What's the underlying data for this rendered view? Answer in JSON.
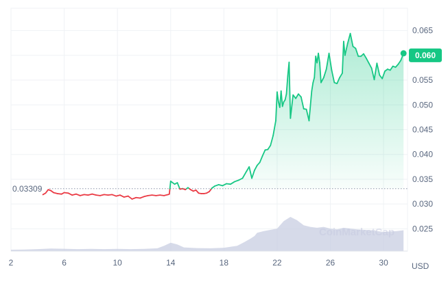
{
  "chart_data": {
    "type": "line",
    "currency": "USD",
    "watermark": "CoinMarketCap",
    "reference": {
      "value": 0.03309,
      "label": "0.03309"
    },
    "current": {
      "value": 0.06,
      "label": "0.060"
    },
    "ylim": [
      0.0205,
      0.0695
    ],
    "xlim": [
      2,
      31.8
    ],
    "x_ticks": [
      2,
      6,
      10,
      14,
      18,
      22,
      26,
      30
    ],
    "x_tick_labels": [
      "2",
      "6",
      "10",
      "14",
      "18",
      "22",
      "26",
      "30"
    ],
    "y_ticks": [
      0.025,
      0.03,
      0.035,
      0.04,
      0.045,
      0.05,
      0.055,
      0.06,
      0.065
    ],
    "y_tick_labels": [
      "0.025",
      "0.030",
      "0.035",
      "0.040",
      "0.045",
      "0.050",
      "0.055",
      "0.060",
      "0.065"
    ],
    "grid": true,
    "colors": {
      "up": "#16c784",
      "down": "#ea3943",
      "volume": "#c8cee2",
      "badge": "#16c784"
    },
    "series": [
      {
        "x": [
          4.4,
          4.6,
          4.8,
          5.0,
          5.2,
          5.5,
          5.8,
          6.0,
          6.3,
          6.6,
          6.9,
          7.2,
          7.5,
          7.8,
          8.1,
          8.4,
          8.7,
          9.0,
          9.3,
          9.6,
          9.9,
          10.2,
          10.5,
          10.8,
          11.1,
          11.4,
          11.7,
          12.0,
          12.3,
          12.6,
          12.9,
          13.2,
          13.5,
          13.8,
          13.9,
          14.0,
          14.1,
          14.3,
          14.5,
          14.7,
          14.9,
          15.1,
          15.3,
          15.5,
          15.7,
          15.9,
          16.1,
          16.3,
          16.5,
          16.7,
          16.9,
          17.1,
          17.3,
          17.6,
          17.9,
          18.2,
          18.5,
          18.8,
          19.1,
          19.4,
          19.7,
          19.9,
          20.1,
          20.3,
          20.5,
          20.7,
          20.9,
          21.1,
          21.3,
          21.5,
          21.7,
          21.9,
          22.0,
          22.1,
          22.2,
          22.3,
          22.4,
          22.5,
          22.6,
          22.7,
          22.8,
          22.9,
          23.0,
          23.2,
          23.4,
          23.6,
          23.8,
          24.0,
          24.2,
          24.4,
          24.6,
          24.7,
          24.8,
          24.9,
          25.0,
          25.1,
          25.2,
          25.3,
          25.5,
          25.7,
          25.9,
          26.1,
          26.3,
          26.5,
          26.7,
          26.9,
          27.0,
          27.1,
          27.3,
          27.5,
          27.7,
          27.9,
          28.1,
          28.3,
          28.5,
          28.7,
          28.9,
          29.1,
          29.3,
          29.5,
          29.7,
          29.9,
          30.1,
          30.3,
          30.5,
          30.7,
          30.9,
          31.1,
          31.3,
          31.5
        ],
        "values": [
          0.0319,
          0.0322,
          0.0329,
          0.0327,
          0.0323,
          0.0321,
          0.032,
          0.0323,
          0.0322,
          0.0318,
          0.032,
          0.0317,
          0.0319,
          0.0318,
          0.032,
          0.0318,
          0.0317,
          0.0319,
          0.0318,
          0.0319,
          0.0316,
          0.0318,
          0.0314,
          0.0316,
          0.031,
          0.0313,
          0.0312,
          0.0315,
          0.0317,
          0.0318,
          0.0317,
          0.0318,
          0.0317,
          0.0319,
          0.032,
          0.0346,
          0.0344,
          0.034,
          0.0343,
          0.033,
          0.0331,
          0.0329,
          0.0333,
          0.0329,
          0.0326,
          0.0328,
          0.0322,
          0.0321,
          0.0321,
          0.0322,
          0.0325,
          0.0332,
          0.0336,
          0.0339,
          0.0337,
          0.0341,
          0.034,
          0.0345,
          0.0348,
          0.0352,
          0.0366,
          0.0375,
          0.0352,
          0.0368,
          0.0378,
          0.0384,
          0.0397,
          0.0409,
          0.041,
          0.0418,
          0.0438,
          0.0468,
          0.0526,
          0.0506,
          0.0495,
          0.0528,
          0.0497,
          0.0506,
          0.051,
          0.0522,
          0.0558,
          0.0586,
          0.0473,
          0.052,
          0.0513,
          0.0522,
          0.0516,
          0.0492,
          0.0491,
          0.0468,
          0.0528,
          0.0545,
          0.0555,
          0.0598,
          0.0585,
          0.0604,
          0.0585,
          0.0545,
          0.0555,
          0.0572,
          0.0604,
          0.057,
          0.0545,
          0.0543,
          0.0555,
          0.0564,
          0.0628,
          0.06,
          0.0624,
          0.0644,
          0.0618,
          0.0614,
          0.0598,
          0.0598,
          0.0603,
          0.0594,
          0.0584,
          0.0574,
          0.0551,
          0.0584,
          0.056,
          0.0553,
          0.0568,
          0.0572,
          0.057,
          0.0578,
          0.0576,
          0.0582,
          0.059,
          0.0604
        ]
      }
    ],
    "volume": {
      "x": [
        2,
        3,
        4,
        5,
        6,
        7,
        8,
        9,
        10,
        11,
        12,
        13,
        13.5,
        14,
        14.5,
        15,
        16,
        17,
        18,
        19,
        19.5,
        20,
        20.3,
        20.5,
        21,
        22,
        22.5,
        23,
        23.5,
        24,
        24.5,
        25,
        25.5,
        26,
        26.5,
        27,
        28,
        29,
        30,
        31,
        31.5
      ],
      "values": [
        0.8,
        0.9,
        1.2,
        1.5,
        1.4,
        1.2,
        1.3,
        1.2,
        1.3,
        1.2,
        1.3,
        1.7,
        3.2,
        5.0,
        4.0,
        2.2,
        1.8,
        1.7,
        2.0,
        3.2,
        5.2,
        7.5,
        9.0,
        11.0,
        12.0,
        13.5,
        18.0,
        20.5,
        18.5,
        15.5,
        14.5,
        14.0,
        14.5,
        13.5,
        13.0,
        14.0,
        13.0,
        12.5,
        11.5,
        12.0,
        12.5
      ]
    }
  }
}
